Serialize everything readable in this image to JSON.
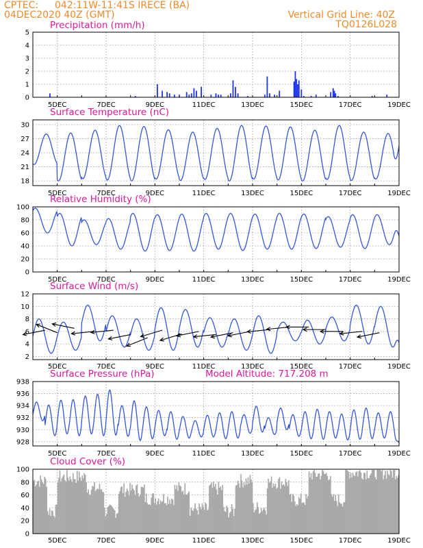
{
  "header": {
    "source": "CPTEC:",
    "location": "042:11W-11:41S   IRECE (BA)",
    "run_date": "04DEC2020 40Z (GMT)",
    "grid_note": "Vertical Grid Line: 40Z",
    "model_id": "TQ0126L028"
  },
  "colors": {
    "line": "#3355dd",
    "bar": "#1f33ee",
    "cloud": "#a9a9a9",
    "arrow": "#000000",
    "title": "#e0179a",
    "header": "#ee8a2a"
  },
  "chart_data": [
    {
      "type": "bar",
      "title": "Precipitation (mm/h)",
      "x_range": [
        4,
        19
      ],
      "x_ticks": [
        "5DEC",
        "7DEC",
        "9DEC",
        "11DEC",
        "13DEC",
        "15DEC",
        "17DEC",
        "19DEC"
      ],
      "ylim": [
        0,
        5
      ],
      "y_ticks": [
        0,
        1,
        2,
        3,
        4,
        5
      ],
      "grid": true,
      "values": [
        [
          4.7,
          0.3
        ],
        [
          8.2,
          0.1
        ],
        [
          9.1,
          1.0
        ],
        [
          9.3,
          0.5
        ],
        [
          9.5,
          0.4
        ],
        [
          9.6,
          0.3
        ],
        [
          9.8,
          0.2
        ],
        [
          10.0,
          0.2
        ],
        [
          10.3,
          0.4
        ],
        [
          10.4,
          0.2
        ],
        [
          10.5,
          0.3
        ],
        [
          10.6,
          0.7
        ],
        [
          10.7,
          0.5
        ],
        [
          10.9,
          0.8
        ],
        [
          11.3,
          0.2
        ],
        [
          11.5,
          0.3
        ],
        [
          11.6,
          0.2
        ],
        [
          11.7,
          0.2
        ],
        [
          12.1,
          0.3
        ],
        [
          12.2,
          1.3
        ],
        [
          12.3,
          0.8
        ],
        [
          12.4,
          0.3
        ],
        [
          12.8,
          0.1
        ],
        [
          13.5,
          0.2
        ],
        [
          13.6,
          1.6
        ],
        [
          13.7,
          0.3
        ],
        [
          13.9,
          0.2
        ],
        [
          14.1,
          0.5
        ],
        [
          14.7,
          1.2
        ],
        [
          14.75,
          2.0
        ],
        [
          14.8,
          1.4
        ],
        [
          14.85,
          1.0
        ],
        [
          14.9,
          1.3
        ],
        [
          15.0,
          0.6
        ],
        [
          15.1,
          0.1
        ],
        [
          15.4,
          0.1
        ],
        [
          15.6,
          0.2
        ],
        [
          16.2,
          0.4
        ],
        [
          16.3,
          0.7
        ],
        [
          16.35,
          0.5
        ],
        [
          16.4,
          0.3
        ],
        [
          16.5,
          0.1
        ],
        [
          17.9,
          0.1
        ],
        [
          18.5,
          0.2
        ]
      ]
    },
    {
      "type": "line",
      "title": "Surface Temperature (nC)",
      "x_range": [
        4,
        19
      ],
      "x_ticks": [
        "5DEC",
        "7DEC",
        "9DEC",
        "11DEC",
        "13DEC",
        "15DEC",
        "17DEC",
        "19DEC"
      ],
      "ylim": [
        17,
        31
      ],
      "y_ticks": [
        18,
        21,
        24,
        27,
        30
      ],
      "grid": true,
      "diurnal": {
        "period_days": 1,
        "peak_hour_frac": 0.55,
        "shape": 1.8
      },
      "daily_min": [
        21.5,
        18.0,
        18.5,
        18.2,
        18.0,
        18.4,
        18.1,
        18.3,
        18.0,
        18.4,
        18.2,
        18.0,
        18.3,
        18.1,
        18.4,
        18.2
      ],
      "daily_max": [
        28.0,
        28.2,
        28.8,
        29.8,
        29.6,
        28.9,
        28.4,
        29.2,
        29.8,
        29.7,
        29.5,
        28.8,
        29.8,
        28.4,
        28.1,
        28.2
      ],
      "end_value": 25.5
    },
    {
      "type": "line",
      "title": "Relative Humidity (%)",
      "x_range": [
        4,
        19
      ],
      "x_ticks": [
        "5DEC",
        "7DEC",
        "9DEC",
        "11DEC",
        "13DEC",
        "15DEC",
        "17DEC",
        "19DEC"
      ],
      "ylim": [
        0,
        100
      ],
      "y_ticks": [
        0,
        20,
        40,
        60,
        80,
        100
      ],
      "grid": true,
      "diurnal": {
        "period_days": 1,
        "peak_hour_frac": 0.1,
        "shape": 1.8
      },
      "daily_min": [
        60,
        40,
        42,
        35,
        32,
        33,
        32,
        35,
        33,
        35,
        35,
        36,
        38,
        36,
        42,
        34
      ],
      "daily_max": [
        98,
        90,
        80,
        82,
        90,
        88,
        89,
        90,
        90,
        89,
        90,
        89,
        85,
        88,
        88,
        86
      ],
      "end_value": 55
    },
    {
      "type": "line",
      "title": "Surface Wind (m/s)",
      "x_range": [
        4,
        19
      ],
      "x_ticks": [
        "5DEC",
        "7DEC",
        "9DEC",
        "11DEC",
        "13DEC",
        "15DEC",
        "17DEC",
        "19DEC"
      ],
      "ylim": [
        1.5,
        12
      ],
      "y_ticks": [
        2,
        4,
        6,
        8,
        10,
        12
      ],
      "grid": true,
      "diurnal": {
        "period_days": 1,
        "peak_hour_frac": 0.25,
        "shape": 1.0
      },
      "daily_min": [
        2.5,
        3.0,
        4.5,
        3.5,
        3.0,
        3.0,
        3.5,
        3.5,
        3.0,
        2.5,
        4.5,
        4.0,
        4.5,
        4.0,
        3.5,
        3.8
      ],
      "daily_max": [
        8.0,
        7.5,
        10.2,
        8.5,
        8.0,
        9.8,
        9.5,
        8.2,
        8.0,
        8.5,
        7.5,
        7.8,
        8.3,
        10.2,
        10.0,
        8.0
      ],
      "end_value": 4.2,
      "wind_vectors": [
        {
          "x": 4.5,
          "y": 6.2,
          "u": -1.0,
          "v": -0.2
        },
        {
          "x": 5.0,
          "y": 5.8,
          "u": -1.0,
          "v": 0.4
        },
        {
          "x": 5.7,
          "y": 6.5,
          "u": -1.0,
          "v": 0.2
        },
        {
          "x": 6.5,
          "y": 6.0,
          "u": -1.0,
          "v": -0.1
        },
        {
          "x": 7.3,
          "y": 6.2,
          "u": -1.0,
          "v": -0.1
        },
        {
          "x": 8.0,
          "y": 5.5,
          "u": -1.0,
          "v": -0.2
        },
        {
          "x": 8.7,
          "y": 5.0,
          "u": -1.0,
          "v": -0.4
        },
        {
          "x": 9.3,
          "y": 6.2,
          "u": -1.0,
          "v": -0.3
        },
        {
          "x": 10.1,
          "y": 5.6,
          "u": -1.0,
          "v": -0.3
        },
        {
          "x": 10.8,
          "y": 6.0,
          "u": -1.0,
          "v": -0.2
        },
        {
          "x": 11.5,
          "y": 5.5,
          "u": -1.0,
          "v": -0.1
        },
        {
          "x": 12.2,
          "y": 5.8,
          "u": -1.0,
          "v": -0.2
        },
        {
          "x": 12.9,
          "y": 6.0,
          "u": -1.0,
          "v": -0.2
        },
        {
          "x": 13.7,
          "y": 6.3,
          "u": -1.0,
          "v": -0.1
        },
        {
          "x": 14.5,
          "y": 6.7,
          "u": -1.0,
          "v": -0.1
        },
        {
          "x": 15.3,
          "y": 6.7,
          "u": -1.0,
          "v": 0.0
        },
        {
          "x": 16.0,
          "y": 6.3,
          "u": -1.0,
          "v": 0.0
        },
        {
          "x": 16.7,
          "y": 6.0,
          "u": -1.0,
          "v": 0.0
        },
        {
          "x": 17.5,
          "y": 6.0,
          "u": -1.0,
          "v": -0.1
        },
        {
          "x": 18.2,
          "y": 5.8,
          "u": -1.0,
          "v": -0.2
        }
      ]
    },
    {
      "type": "line",
      "title": "Surface Pressure (hPa)",
      "annotation": "Model Altitude: 717.208 m",
      "x_range": [
        4,
        19
      ],
      "x_ticks": [
        "5DEC",
        "7DEC",
        "9DEC",
        "11DEC",
        "13DEC",
        "15DEC",
        "17DEC",
        "19DEC"
      ],
      "ylim": [
        927.3,
        938
      ],
      "y_ticks": [
        928,
        930,
        932,
        934,
        936,
        938
      ],
      "grid": true,
      "diurnal": {
        "period_days": 0.5,
        "peak_hour_frac": 0.3,
        "shape": 1.0
      },
      "daily_min": [
        931.5,
        929.0,
        929.3,
        929.0,
        929.3,
        929.0,
        929.1,
        928.9,
        928.2,
        928.5,
        929.0,
        928.4,
        928.6,
        928.8,
        928.8,
        928.5,
        928.6,
        929.4,
        929.6,
        929.2,
        930.0,
        928.9,
        928.5,
        928.4,
        928.6,
        928.3,
        928.4,
        928.5,
        928.6,
        928.5
      ],
      "daily_max": [
        934.6,
        934.1,
        934.9,
        935.0,
        935.6,
        935.9,
        936.6,
        934.0,
        934.8,
        933.8,
        933.2,
        933.0,
        932.2,
        931.5,
        932.4,
        932.8,
        933.0,
        932.5,
        933.9,
        932.0,
        933.6,
        932.5,
        933.0,
        933.4,
        933.0,
        932.6,
        933.3,
        933.6,
        932.8,
        933.0
      ],
      "end_value": 927.8
    },
    {
      "type": "bar",
      "title": "Cloud Cover (%)",
      "x_range": [
        4,
        19
      ],
      "x_ticks": [
        "5DEC",
        "7DEC",
        "9DEC",
        "11DEC",
        "13DEC",
        "15DEC",
        "17DEC",
        "19DEC"
      ],
      "ylim": [
        0,
        100
      ],
      "y_ticks": [
        0,
        20,
        40,
        60,
        80,
        100
      ],
      "grid": true,
      "segments": [
        {
          "x": [
            4.0,
            4.6
          ],
          "level": 82
        },
        {
          "x": [
            4.6,
            5.0
          ],
          "level": 35
        },
        {
          "x": [
            5.0,
            6.2
          ],
          "level": 88
        },
        {
          "x": [
            6.2,
            6.9
          ],
          "level": 70
        },
        {
          "x": [
            6.9,
            7.5
          ],
          "level": 35
        },
        {
          "x": [
            7.5,
            8.6
          ],
          "level": 68
        },
        {
          "x": [
            8.6,
            9.8
          ],
          "level": 55
        },
        {
          "x": [
            9.8,
            10.4
          ],
          "level": 70
        },
        {
          "x": [
            10.4,
            11.2
          ],
          "level": 38
        },
        {
          "x": [
            11.2,
            11.8
          ],
          "level": 70
        },
        {
          "x": [
            11.8,
            12.3
          ],
          "level": 35
        },
        {
          "x": [
            12.3,
            13.0
          ],
          "level": 82
        },
        {
          "x": [
            13.0,
            13.6
          ],
          "level": 40
        },
        {
          "x": [
            13.6,
            14.5
          ],
          "level": 80
        },
        {
          "x": [
            14.5,
            15.3
          ],
          "level": 52
        },
        {
          "x": [
            15.3,
            16.2
          ],
          "level": 92
        },
        {
          "x": [
            16.2,
            16.8
          ],
          "level": 52
        },
        {
          "x": [
            16.8,
            19.0
          ],
          "level": 95
        }
      ]
    }
  ]
}
